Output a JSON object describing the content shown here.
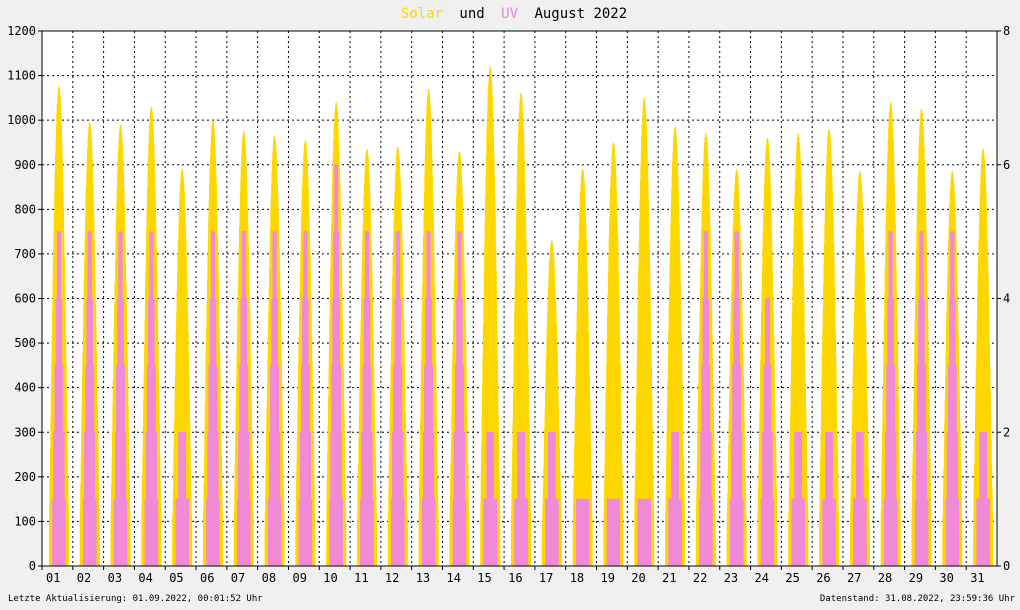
{
  "chart_data": {
    "type": "area",
    "title": {
      "part1": "Solar",
      "part2": "und",
      "part3": "UV",
      "part4": "August 2022"
    },
    "series_colors": {
      "solar": "#ffd700",
      "uv": "#ee82ee"
    },
    "y_left": {
      "min": 0,
      "max": 1200,
      "ticks": [
        0,
        100,
        200,
        300,
        400,
        500,
        600,
        700,
        800,
        900,
        1000,
        1100,
        1200
      ]
    },
    "y_right": {
      "min": 0,
      "max": 8,
      "ticks": [
        0,
        2,
        4,
        6,
        8
      ]
    },
    "x_ticks": [
      "01",
      "02",
      "03",
      "04",
      "05",
      "06",
      "07",
      "08",
      "09",
      "10",
      "11",
      "12",
      "13",
      "14",
      "15",
      "16",
      "17",
      "18",
      "19",
      "20",
      "21",
      "22",
      "23",
      "24",
      "25",
      "26",
      "27",
      "28",
      "29",
      "30",
      "31"
    ],
    "grid": true,
    "days": [
      {
        "day": 1,
        "solar_peak": 1075,
        "uv_peak": 5
      },
      {
        "day": 2,
        "solar_peak": 995,
        "uv_peak": 5
      },
      {
        "day": 3,
        "solar_peak": 990,
        "uv_peak": 5
      },
      {
        "day": 4,
        "solar_peak": 1030,
        "uv_peak": 5
      },
      {
        "day": 5,
        "solar_peak": 890,
        "uv_peak": 2
      },
      {
        "day": 6,
        "solar_peak": 1000,
        "uv_peak": 5
      },
      {
        "day": 7,
        "solar_peak": 975,
        "uv_peak": 5
      },
      {
        "day": 8,
        "solar_peak": 965,
        "uv_peak": 5
      },
      {
        "day": 9,
        "solar_peak": 955,
        "uv_peak": 5
      },
      {
        "day": 10,
        "solar_peak": 1040,
        "uv_peak": 6
      },
      {
        "day": 11,
        "solar_peak": 935,
        "uv_peak": 5
      },
      {
        "day": 12,
        "solar_peak": 940,
        "uv_peak": 5
      },
      {
        "day": 13,
        "solar_peak": 1070,
        "uv_peak": 5
      },
      {
        "day": 14,
        "solar_peak": 930,
        "uv_peak": 5
      },
      {
        "day": 15,
        "solar_peak": 1120,
        "uv_peak": 2
      },
      {
        "day": 16,
        "solar_peak": 1060,
        "uv_peak": 2
      },
      {
        "day": 17,
        "solar_peak": 730,
        "uv_peak": 2
      },
      {
        "day": 18,
        "solar_peak": 890,
        "uv_peak": 1
      },
      {
        "day": 19,
        "solar_peak": 950,
        "uv_peak": 1
      },
      {
        "day": 20,
        "solar_peak": 1050,
        "uv_peak": 1
      },
      {
        "day": 21,
        "solar_peak": 985,
        "uv_peak": 2
      },
      {
        "day": 22,
        "solar_peak": 970,
        "uv_peak": 5
      },
      {
        "day": 23,
        "solar_peak": 890,
        "uv_peak": 5
      },
      {
        "day": 24,
        "solar_peak": 960,
        "uv_peak": 4
      },
      {
        "day": 25,
        "solar_peak": 970,
        "uv_peak": 2
      },
      {
        "day": 26,
        "solar_peak": 980,
        "uv_peak": 2
      },
      {
        "day": 27,
        "solar_peak": 885,
        "uv_peak": 2
      },
      {
        "day": 28,
        "solar_peak": 1040,
        "uv_peak": 5
      },
      {
        "day": 29,
        "solar_peak": 1025,
        "uv_peak": 5
      },
      {
        "day": 30,
        "solar_peak": 885,
        "uv_peak": 5
      },
      {
        "day": 31,
        "solar_peak": 935,
        "uv_peak": 2
      }
    ]
  },
  "footer": {
    "left": "Letzte Aktualisierung: 01.09.2022, 00:01:52 Uhr",
    "right": "Datenstand: 31.08.2022, 23:59:36 Uhr"
  }
}
